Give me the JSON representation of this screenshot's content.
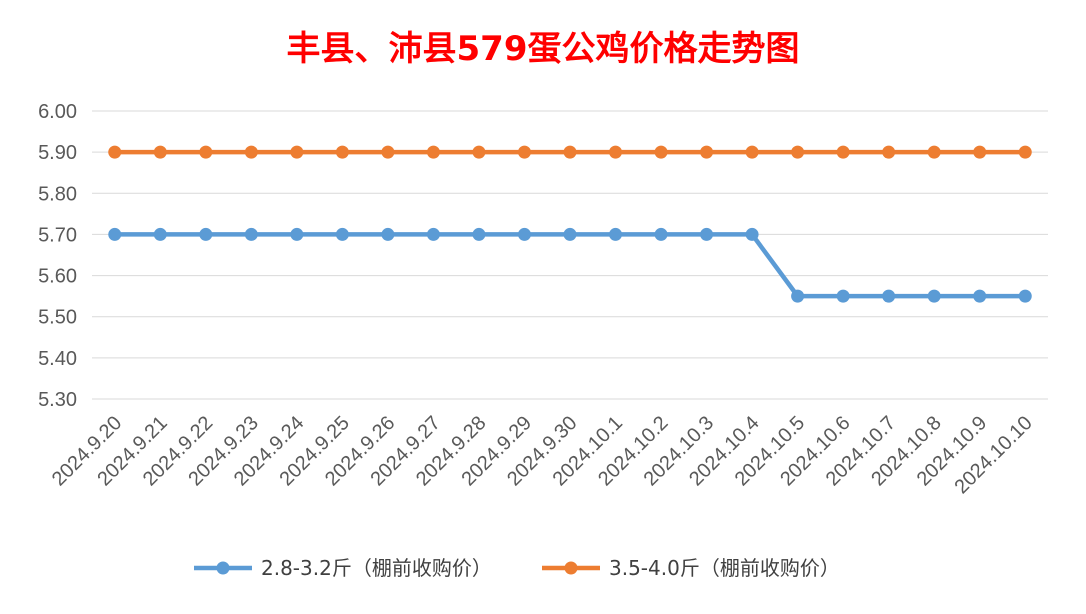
{
  "chart_data": {
    "type": "line",
    "title": "丰县、沛县579蛋公鸡价格走势图",
    "title_color": "#FF0000",
    "xlabel": "",
    "ylabel": "",
    "categories": [
      "2024.9.20",
      "2024.9.21",
      "2024.9.22",
      "2024.9.23",
      "2024.9.24",
      "2024.9.25",
      "2024.9.26",
      "2024.9.27",
      "2024.9.28",
      "2024.9.29",
      "2024.9.30",
      "2024.10.1",
      "2024.10.2",
      "2024.10.3",
      "2024.10.4",
      "2024.10.5",
      "2024.10.6",
      "2024.10.7",
      "2024.10.8",
      "2024.10.9",
      "2024.10.10"
    ],
    "ylim": [
      5.3,
      6.0
    ],
    "yticks": [
      "6.00",
      "5.90",
      "5.80",
      "5.70",
      "5.60",
      "5.50",
      "5.40",
      "5.30"
    ],
    "grid": true,
    "legend_position": "bottom",
    "series": [
      {
        "name": "2.8-3.2斤（棚前收购价）",
        "color": "#5B9BD5",
        "values": [
          5.7,
          5.7,
          5.7,
          5.7,
          5.7,
          5.7,
          5.7,
          5.7,
          5.7,
          5.7,
          5.7,
          5.7,
          5.7,
          5.7,
          5.7,
          5.55,
          5.55,
          5.55,
          5.55,
          5.55,
          5.55
        ]
      },
      {
        "name": "3.5-4.0斤（棚前收购价）",
        "color": "#ED7D31",
        "values": [
          5.9,
          5.9,
          5.9,
          5.9,
          5.9,
          5.9,
          5.9,
          5.9,
          5.9,
          5.9,
          5.9,
          5.9,
          5.9,
          5.9,
          5.9,
          5.9,
          5.9,
          5.9,
          5.9,
          5.9,
          5.9
        ]
      }
    ]
  }
}
